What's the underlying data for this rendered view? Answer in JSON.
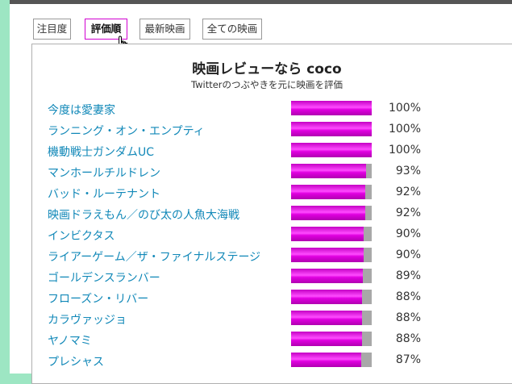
{
  "tabs": [
    "注目度",
    "評価順",
    "最新映画",
    "全ての映画"
  ],
  "active_tab_index": 1,
  "header": {
    "title": "映画レビューなら coco",
    "subtitle": "Twitterのつぶやきを元に映画を評価"
  },
  "colors": {
    "bar_fill": "#e000e0",
    "bar_track": "#a8a8a8",
    "link": "#1188b8",
    "background": "#9de6c3"
  },
  "rankings": [
    {
      "title": "今度は愛妻家",
      "score": 100,
      "label": "100%"
    },
    {
      "title": "ランニング・オン・エンプティ",
      "score": 100,
      "label": "100%"
    },
    {
      "title": "機動戦士ガンダムUC",
      "score": 100,
      "label": "100%"
    },
    {
      "title": "マンホールチルドレン",
      "score": 93,
      "label": "93%"
    },
    {
      "title": "バッド・ルーテナント",
      "score": 92,
      "label": "92%"
    },
    {
      "title": "映画ドラえもん／のび太の人魚大海戦",
      "score": 92,
      "label": "92%"
    },
    {
      "title": "インビクタス",
      "score": 90,
      "label": "90%"
    },
    {
      "title": "ライアーゲーム／ザ・ファイナルステージ",
      "score": 90,
      "label": "90%"
    },
    {
      "title": "ゴールデンスランバー",
      "score": 89,
      "label": "89%"
    },
    {
      "title": "フローズン・リバー",
      "score": 88,
      "label": "88%"
    },
    {
      "title": "カラヴァッジョ",
      "score": 88,
      "label": "88%"
    },
    {
      "title": "ヤノマミ",
      "score": 88,
      "label": "88%"
    },
    {
      "title": "プレシャス",
      "score": 87,
      "label": "87%"
    }
  ]
}
